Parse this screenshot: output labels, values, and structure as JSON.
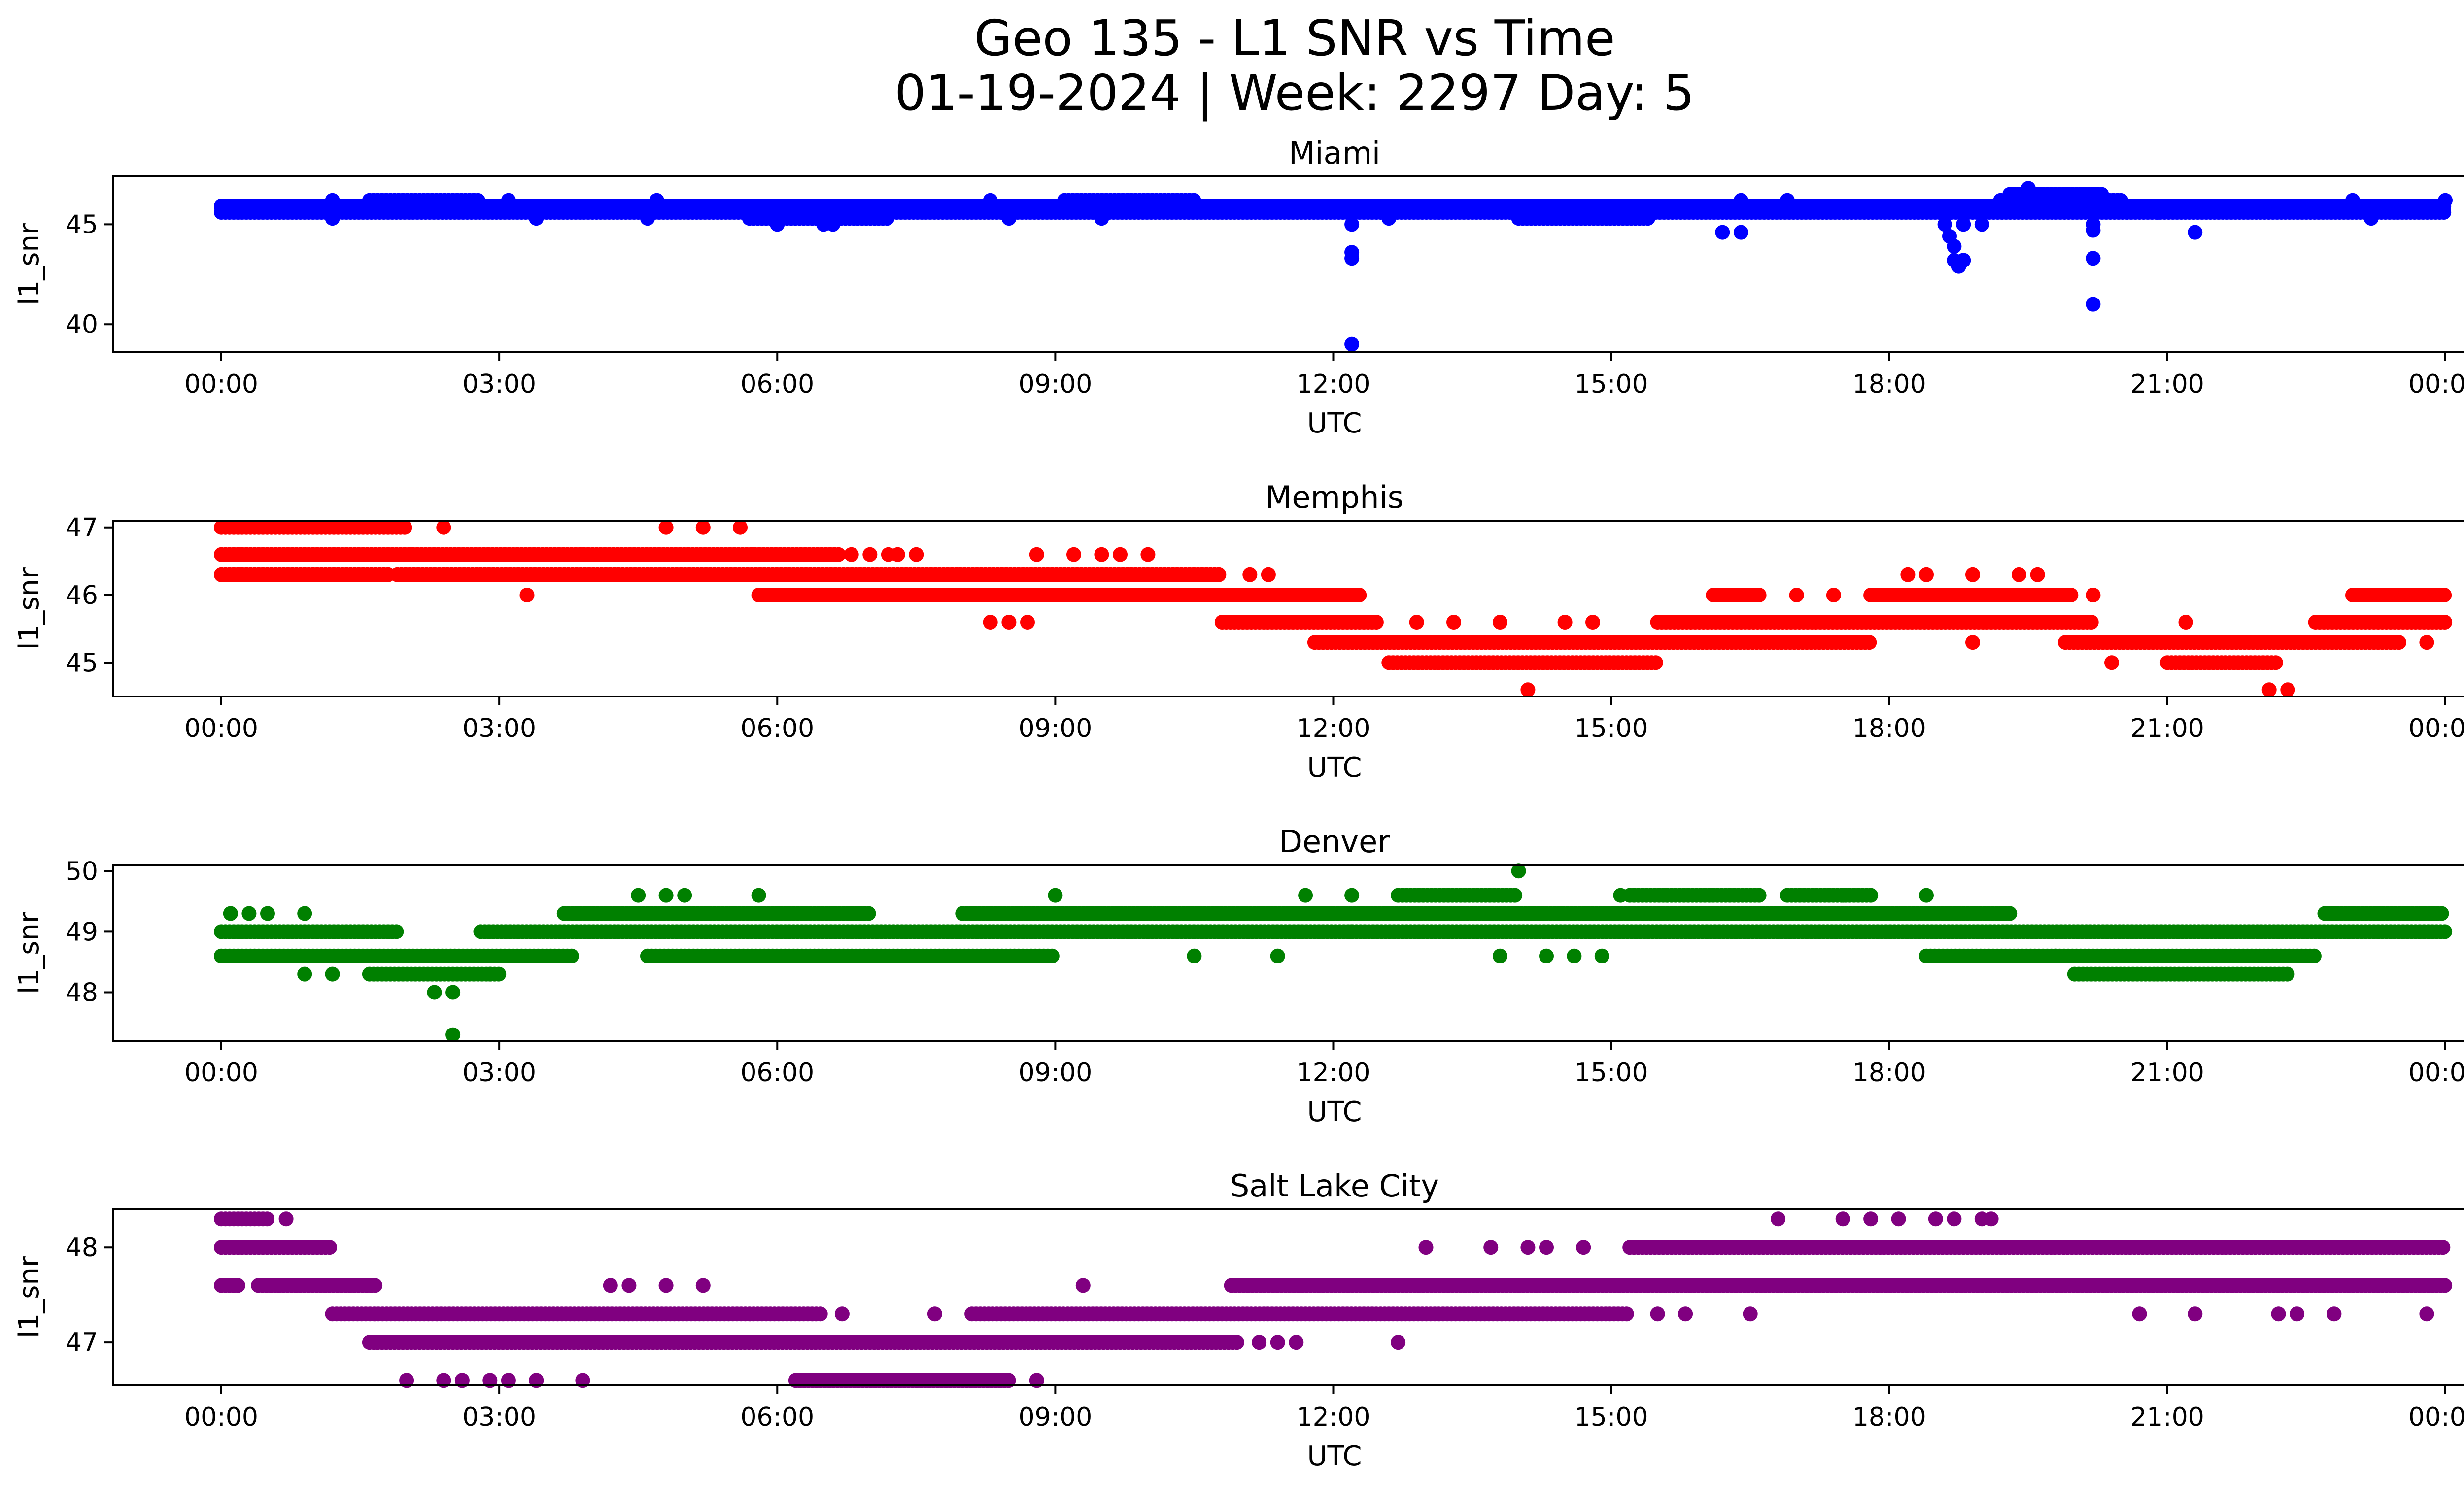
{
  "figure": {
    "title_line1": "Geo 135 - L1 SNR vs Time",
    "title_line2": "01-19-2024 | Week: 2297 Day: 5"
  },
  "chart_data": [
    {
      "type": "scatter",
      "title": "Miami",
      "color": "#0000ff",
      "xlabel": "UTC",
      "ylabel": "l1_snr",
      "xlim": [
        -0.8,
        25.2
      ],
      "ylim": [
        38.6,
        47.4
      ],
      "xticks": [
        "00:00",
        "03:00",
        "06:00",
        "09:00",
        "12:00",
        "15:00",
        "18:00",
        "21:00",
        "00:00"
      ],
      "yticks": [
        40,
        45
      ],
      "bands": [
        {
          "y": 45.6,
          "start": 0.0,
          "end": 24.0
        },
        {
          "y": 45.9,
          "start": 0.0,
          "end": 24.0
        },
        {
          "y": 46.2,
          "start": 1.6,
          "end": 2.8
        },
        {
          "y": 46.2,
          "start": 9.1,
          "end": 10.5
        },
        {
          "y": 46.2,
          "start": 19.2,
          "end": 20.5
        },
        {
          "y": 45.3,
          "start": 5.7,
          "end": 7.2
        },
        {
          "y": 45.3,
          "start": 14.0,
          "end": 15.4
        },
        {
          "y": 46.5,
          "start": 19.3,
          "end": 20.3
        }
      ],
      "points": [
        [
          1.2,
          45.3
        ],
        [
          1.2,
          46.2
        ],
        [
          3.1,
          46.2
        ],
        [
          3.4,
          45.3
        ],
        [
          4.6,
          45.3
        ],
        [
          4.7,
          46.2
        ],
        [
          6.0,
          45.0
        ],
        [
          6.5,
          45.0
        ],
        [
          6.6,
          45.0
        ],
        [
          8.3,
          46.2
        ],
        [
          8.5,
          45.3
        ],
        [
          9.5,
          45.3
        ],
        [
          12.2,
          45.0
        ],
        [
          12.2,
          43.6
        ],
        [
          12.2,
          43.3
        ],
        [
          12.2,
          39.0
        ],
        [
          12.6,
          45.3
        ],
        [
          16.2,
          44.6
        ],
        [
          16.4,
          44.6
        ],
        [
          16.4,
          46.2
        ],
        [
          16.9,
          46.2
        ],
        [
          18.6,
          45.0
        ],
        [
          18.65,
          44.4
        ],
        [
          18.7,
          43.9
        ],
        [
          18.7,
          43.2
        ],
        [
          18.75,
          42.9
        ],
        [
          18.8,
          43.2
        ],
        [
          18.8,
          45.0
        ],
        [
          19.0,
          45.0
        ],
        [
          19.5,
          46.8
        ],
        [
          19.6,
          46.5
        ],
        [
          20.2,
          45.0
        ],
        [
          20.2,
          44.7
        ],
        [
          20.2,
          43.3
        ],
        [
          20.2,
          41.0
        ],
        [
          20.5,
          46.2
        ],
        [
          20.9,
          45.6
        ],
        [
          21.3,
          44.6
        ],
        [
          23.0,
          46.2
        ],
        [
          23.2,
          45.3
        ],
        [
          24.0,
          46.2
        ]
      ]
    },
    {
      "type": "scatter",
      "title": "Memphis",
      "color": "#ff0000",
      "xlabel": "UTC",
      "ylabel": "l1_snr",
      "xlim": [
        -0.8,
        25.2
      ],
      "ylim": [
        44.5,
        47.1
      ],
      "xticks": [
        "00:00",
        "03:00",
        "06:00",
        "09:00",
        "12:00",
        "15:00",
        "18:00",
        "21:00",
        "00:00"
      ],
      "yticks": [
        45,
        46,
        47
      ],
      "bands": [
        {
          "y": 47.0,
          "start": 0.0,
          "end": 2.0
        },
        {
          "y": 46.6,
          "start": 0.0,
          "end": 6.7
        },
        {
          "y": 46.3,
          "start": 0.0,
          "end": 1.8
        },
        {
          "y": 46.3,
          "start": 1.9,
          "end": 10.8
        },
        {
          "y": 46.0,
          "start": 5.8,
          "end": 12.3
        },
        {
          "y": 45.6,
          "start": 10.8,
          "end": 12.5
        },
        {
          "y": 45.6,
          "start": 15.5,
          "end": 20.2
        },
        {
          "y": 45.6,
          "start": 22.6,
          "end": 24.0
        },
        {
          "y": 45.3,
          "start": 11.8,
          "end": 17.8
        },
        {
          "y": 45.3,
          "start": 19.9,
          "end": 23.5
        },
        {
          "y": 45.0,
          "start": 12.6,
          "end": 15.5
        },
        {
          "y": 45.0,
          "start": 21.0,
          "end": 22.2
        },
        {
          "y": 46.0,
          "start": 16.1,
          "end": 16.6
        },
        {
          "y": 46.0,
          "start": 17.8,
          "end": 20.0
        },
        {
          "y": 46.0,
          "start": 23.0,
          "end": 24.0
        }
      ],
      "points": [
        [
          2.4,
          47.0
        ],
        [
          4.8,
          47.0
        ],
        [
          5.2,
          47.0
        ],
        [
          5.6,
          47.0
        ],
        [
          3.3,
          46.0
        ],
        [
          6.8,
          46.6
        ],
        [
          7.0,
          46.6
        ],
        [
          7.2,
          46.6
        ],
        [
          7.3,
          46.6
        ],
        [
          7.5,
          46.6
        ],
        [
          8.8,
          46.6
        ],
        [
          9.2,
          46.6
        ],
        [
          9.5,
          46.6
        ],
        [
          9.7,
          46.6
        ],
        [
          10.0,
          46.6
        ],
        [
          11.1,
          46.3
        ],
        [
          11.3,
          46.3
        ],
        [
          8.3,
          45.6
        ],
        [
          8.5,
          45.6
        ],
        [
          8.7,
          45.6
        ],
        [
          12.9,
          45.6
        ],
        [
          13.3,
          45.6
        ],
        [
          13.8,
          45.6
        ],
        [
          14.5,
          45.6
        ],
        [
          14.8,
          45.6
        ],
        [
          14.1,
          44.6
        ],
        [
          17.0,
          46.0
        ],
        [
          17.4,
          46.0
        ],
        [
          18.2,
          46.3
        ],
        [
          18.4,
          46.3
        ],
        [
          18.9,
          46.3
        ],
        [
          19.4,
          46.3
        ],
        [
          19.6,
          46.3
        ],
        [
          20.2,
          46.0
        ],
        [
          18.9,
          45.3
        ],
        [
          20.4,
          45.0
        ],
        [
          21.2,
          45.6
        ],
        [
          22.1,
          44.6
        ],
        [
          22.3,
          44.6
        ],
        [
          23.8,
          45.3
        ]
      ]
    },
    {
      "type": "scatter",
      "title": "Denver",
      "color": "#008000",
      "xlabel": "UTC",
      "ylabel": "l1_snr",
      "xlim": [
        -0.8,
        25.2
      ],
      "ylim": [
        47.2,
        50.1
      ],
      "xticks": [
        "00:00",
        "03:00",
        "06:00",
        "09:00",
        "12:00",
        "15:00",
        "18:00",
        "21:00",
        "00:00"
      ],
      "yticks": [
        48,
        49,
        50
      ],
      "bands": [
        {
          "y": 49.0,
          "start": 0.0,
          "end": 1.9
        },
        {
          "y": 49.0,
          "start": 2.8,
          "end": 24.0
        },
        {
          "y": 48.6,
          "start": 0.0,
          "end": 3.8
        },
        {
          "y": 48.6,
          "start": 4.6,
          "end": 9.0
        },
        {
          "y": 48.6,
          "start": 18.4,
          "end": 22.6
        },
        {
          "y": 49.3,
          "start": 3.7,
          "end": 7.0
        },
        {
          "y": 49.3,
          "start": 8.0,
          "end": 12.0
        },
        {
          "y": 49.3,
          "start": 11.6,
          "end": 19.3
        },
        {
          "y": 49.3,
          "start": 22.7,
          "end": 24.0
        },
        {
          "y": 48.3,
          "start": 1.6,
          "end": 3.0
        },
        {
          "y": 48.3,
          "start": 20.0,
          "end": 22.3
        },
        {
          "y": 49.6,
          "start": 12.7,
          "end": 14.0
        },
        {
          "y": 49.6,
          "start": 15.2,
          "end": 16.6
        },
        {
          "y": 49.6,
          "start": 16.9,
          "end": 17.8
        }
      ],
      "points": [
        [
          0.1,
          49.3
        ],
        [
          0.3,
          49.3
        ],
        [
          0.5,
          49.3
        ],
        [
          0.9,
          49.3
        ],
        [
          0.9,
          48.3
        ],
        [
          1.2,
          48.3
        ],
        [
          2.3,
          48.0
        ],
        [
          2.5,
          48.0
        ],
        [
          2.5,
          47.3
        ],
        [
          2.9,
          48.3
        ],
        [
          4.5,
          49.6
        ],
        [
          4.8,
          49.6
        ],
        [
          5.0,
          49.6
        ],
        [
          5.8,
          49.6
        ],
        [
          9.0,
          49.6
        ],
        [
          11.7,
          49.6
        ],
        [
          12.2,
          49.6
        ],
        [
          14.0,
          50.0
        ],
        [
          13.8,
          48.6
        ],
        [
          14.3,
          48.6
        ],
        [
          14.6,
          48.6
        ],
        [
          15.1,
          49.6
        ],
        [
          15.6,
          49.6
        ],
        [
          17.5,
          49.6
        ],
        [
          18.4,
          49.6
        ],
        [
          19.3,
          49.3
        ],
        [
          19.8,
          48.6
        ],
        [
          14.9,
          48.6
        ],
        [
          12.2,
          49.0
        ],
        [
          10.5,
          48.6
        ],
        [
          11.4,
          48.6
        ]
      ]
    },
    {
      "type": "scatter",
      "title": "Salt Lake City",
      "color": "#800080",
      "xlabel": "UTC",
      "ylabel": "l1_snr",
      "xlim": [
        -0.8,
        25.2
      ],
      "ylim": [
        46.55,
        48.4
      ],
      "xticks": [
        "00:00",
        "03:00",
        "06:00",
        "09:00",
        "12:00",
        "15:00",
        "18:00",
        "21:00",
        "00:00"
      ],
      "yticks": [
        47,
        48
      ],
      "bands": [
        {
          "y": 48.3,
          "start": 0.0,
          "end": 0.5
        },
        {
          "y": 48.0,
          "start": 0.0,
          "end": 1.2
        },
        {
          "y": 48.0,
          "start": 15.2,
          "end": 24.0
        },
        {
          "y": 47.6,
          "start": 0.0,
          "end": 0.2
        },
        {
          "y": 47.6,
          "start": 0.4,
          "end": 1.7
        },
        {
          "y": 47.6,
          "start": 10.9,
          "end": 24.0
        },
        {
          "y": 47.3,
          "start": 1.2,
          "end": 6.5
        },
        {
          "y": 47.3,
          "start": 8.1,
          "end": 15.2
        },
        {
          "y": 47.0,
          "start": 1.6,
          "end": 11.0
        },
        {
          "y": 46.6,
          "start": 6.2,
          "end": 8.5
        }
      ],
      "points": [
        [
          0.7,
          48.3
        ],
        [
          2.0,
          46.6
        ],
        [
          2.4,
          46.6
        ],
        [
          2.6,
          46.6
        ],
        [
          2.9,
          46.6
        ],
        [
          3.1,
          46.6
        ],
        [
          3.4,
          46.6
        ],
        [
          3.9,
          46.6
        ],
        [
          4.2,
          47.6
        ],
        [
          4.4,
          47.6
        ],
        [
          4.8,
          47.6
        ],
        [
          5.2,
          47.6
        ],
        [
          6.7,
          47.3
        ],
        [
          7.7,
          47.3
        ],
        [
          9.3,
          47.6
        ],
        [
          8.8,
          46.6
        ],
        [
          11.2,
          47.0
        ],
        [
          11.4,
          47.0
        ],
        [
          11.6,
          47.0
        ],
        [
          12.7,
          47.0
        ],
        [
          13.0,
          48.0
        ],
        [
          13.7,
          48.0
        ],
        [
          14.1,
          48.0
        ],
        [
          14.3,
          48.0
        ],
        [
          14.7,
          48.0
        ],
        [
          15.5,
          47.3
        ],
        [
          15.8,
          47.3
        ],
        [
          16.5,
          47.3
        ],
        [
          16.8,
          48.3
        ],
        [
          17.5,
          48.3
        ],
        [
          17.8,
          48.3
        ],
        [
          18.1,
          48.3
        ],
        [
          18.5,
          48.3
        ],
        [
          18.7,
          48.3
        ],
        [
          19.0,
          48.3
        ],
        [
          19.1,
          48.3
        ],
        [
          20.7,
          47.3
        ],
        [
          21.3,
          47.3
        ],
        [
          22.2,
          47.3
        ],
        [
          22.4,
          47.3
        ],
        [
          22.8,
          47.3
        ],
        [
          23.8,
          47.3
        ]
      ]
    }
  ]
}
